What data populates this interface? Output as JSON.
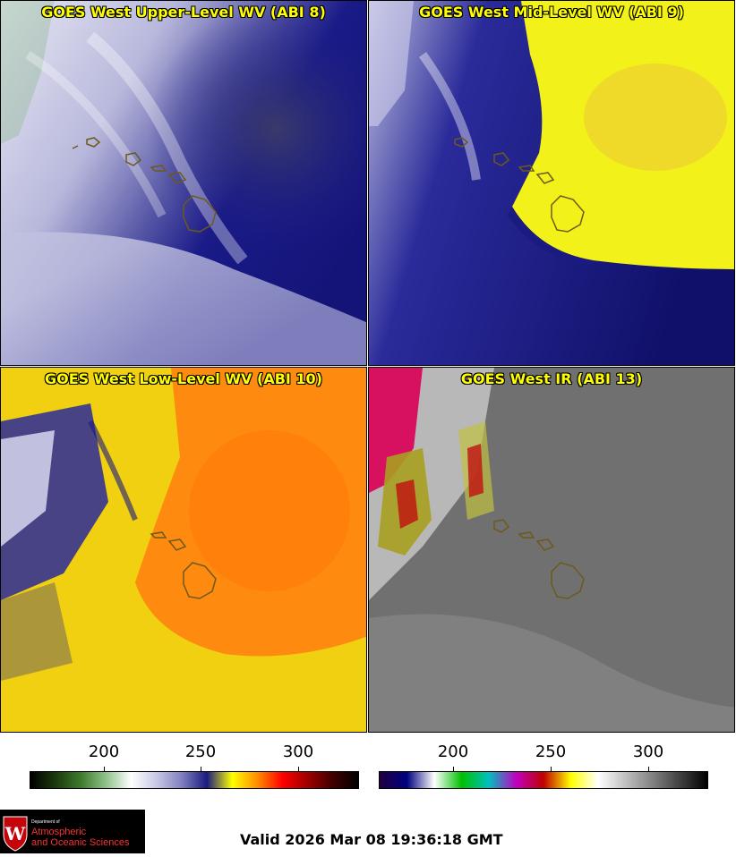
{
  "panels": [
    {
      "title": "GOES West Upper-Level WV (ABI 8)"
    },
    {
      "title": "GOES West Mid-Level WV (ABI 9)"
    },
    {
      "title": "GOES West Low-Level WV (ABI 10)"
    },
    {
      "title": "GOES West IR (ABI 13)"
    }
  ],
  "colorbars": {
    "wv": {
      "ticks": [
        "200",
        "250",
        "300"
      ],
      "colors": [
        "#000000",
        "#1b3a0e",
        "#3e7a2c",
        "#8fc28a",
        "#ffffff",
        "#c8c8e6",
        "#8080c0",
        "#1a1a80",
        "#ffff00",
        "#ff8c00",
        "#ff0000",
        "#a00000",
        "#400000",
        "#000000"
      ]
    },
    "ir": {
      "ticks": [
        "200",
        "250",
        "300"
      ],
      "colors": [
        "#200040",
        "#000080",
        "#ffffff",
        "#00c000",
        "#00c0c0",
        "#c000c0",
        "#c00000",
        "#ffff00",
        "#ffffff",
        "#c0c0c0",
        "#808080",
        "#404040",
        "#000000"
      ]
    }
  },
  "logo": {
    "line1": "Department of",
    "line2": "Atmospheric",
    "line3": "and Oceanic Sciences"
  },
  "valid_text": "Valid 2026 Mar 08 19:36:18 GMT"
}
